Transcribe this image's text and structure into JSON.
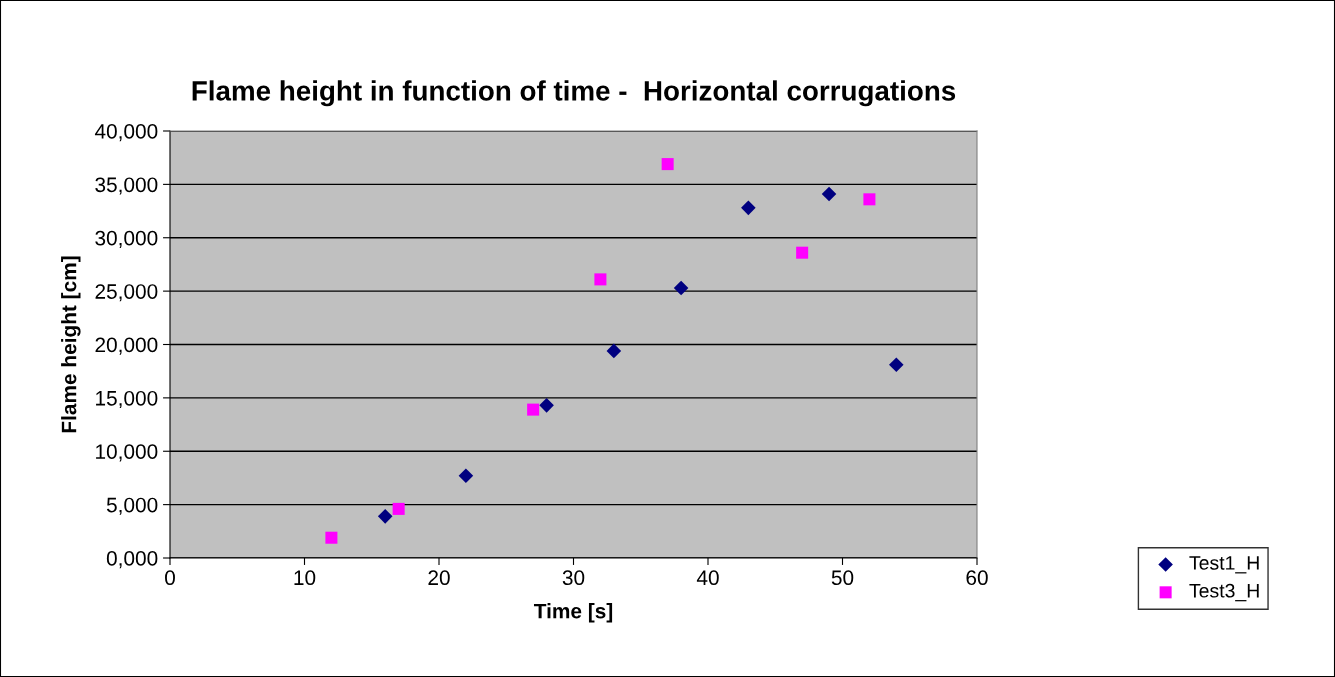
{
  "chart_data": {
    "type": "scatter",
    "title": "Flame height in function of time -  Horizontal corrugations",
    "xlabel": "Time [s]",
    "ylabel": "Flame height [cm]",
    "xlim": [
      0,
      60
    ],
    "xticks": [
      0,
      10,
      20,
      30,
      40,
      50,
      60
    ],
    "ylim": [
      0,
      40000
    ],
    "yticks": [
      {
        "value": 0,
        "label": "0,000"
      },
      {
        "value": 5000,
        "label": "5,000"
      },
      {
        "value": 10000,
        "label": "10,000"
      },
      {
        "value": 15000,
        "label": "15,000"
      },
      {
        "value": 20000,
        "label": "20,000"
      },
      {
        "value": 25000,
        "label": "25,000"
      },
      {
        "value": 30000,
        "label": "30,000"
      },
      {
        "value": 35000,
        "label": "35,000"
      },
      {
        "value": 40000,
        "label": "40,000"
      }
    ],
    "grid": "y",
    "legend": "right",
    "series": [
      {
        "name": "Test1_H",
        "color": "#000080",
        "marker": "diamond",
        "x": [
          16,
          22,
          28,
          33,
          38,
          43,
          49,
          54
        ],
        "values": [
          3900,
          7700,
          14300,
          19400,
          25300,
          32800,
          34100,
          18100
        ]
      },
      {
        "name": "Test3_H",
        "color": "#ff00ff",
        "marker": "square",
        "x": [
          12,
          17,
          27,
          32,
          37,
          47,
          52
        ],
        "values": [
          1900,
          4600,
          13900,
          26100,
          36900,
          28600,
          33600
        ]
      }
    ]
  }
}
